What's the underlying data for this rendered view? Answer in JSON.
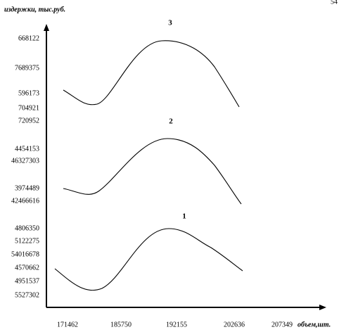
{
  "page_number": "54",
  "y_axis_title": "издержки, тыс.руб.",
  "x_axis_title": "объем,шт.",
  "y_labels": [
    "668122",
    "7689375",
    "596173",
    "704921",
    "720952",
    "4454153",
    "46327303",
    "3974489",
    "42466616",
    "4806350",
    "5122275",
    "54016678",
    "4570662",
    "4951537",
    "5527302"
  ],
  "x_labels": [
    "171462",
    "185750",
    "192155",
    "202636",
    "207349"
  ],
  "curves": [
    {
      "label": "3"
    },
    {
      "label": "2"
    },
    {
      "label": "1"
    }
  ]
}
